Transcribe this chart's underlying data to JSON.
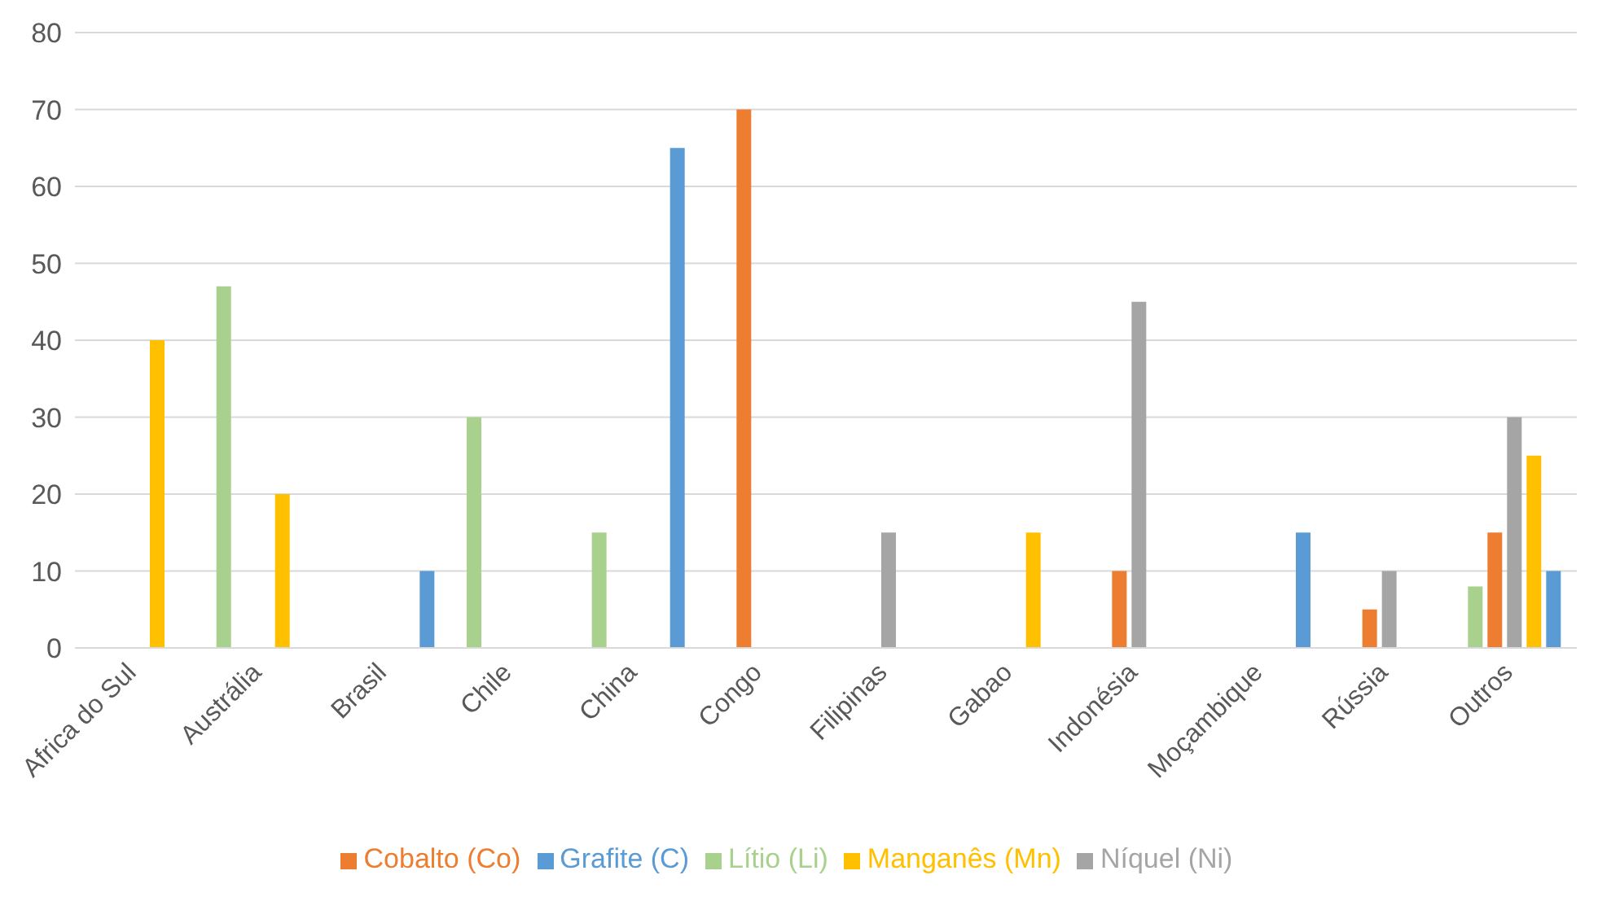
{
  "chart_data": {
    "type": "bar",
    "categories": [
      "Africa do Sul",
      "Austrália",
      "Brasil",
      "Chile",
      "China",
      "Congo",
      "Filipinas",
      "Gabao",
      "Indonésia",
      "Moçambique",
      "Rússia",
      "Outros"
    ],
    "series": [
      {
        "name": "Lítio (Li)",
        "color": "#a9d18e",
        "values": [
          null,
          47,
          null,
          30,
          15,
          null,
          null,
          null,
          null,
          null,
          null,
          8
        ]
      },
      {
        "name": "Cobalto (Co)",
        "color": "#ed7d31",
        "values": [
          null,
          null,
          null,
          null,
          null,
          70,
          null,
          null,
          10,
          null,
          5,
          15
        ]
      },
      {
        "name": "Níquel (Ni)",
        "color": "#a5a5a5",
        "values": [
          null,
          null,
          null,
          null,
          null,
          null,
          15,
          null,
          45,
          null,
          10,
          30
        ]
      },
      {
        "name": "Manganês (Mn)",
        "color": "#ffc000",
        "values": [
          40,
          20,
          null,
          null,
          null,
          null,
          null,
          15,
          null,
          null,
          null,
          25
        ]
      },
      {
        "name": "Grafite (C)",
        "color": "#5b9bd5",
        "values": [
          null,
          null,
          10,
          null,
          65,
          null,
          null,
          null,
          null,
          15,
          null,
          10
        ]
      }
    ],
    "ylim": [
      0,
      80
    ],
    "yticks": [
      0,
      10,
      20,
      30,
      40,
      50,
      60,
      70,
      80
    ],
    "grid": "y",
    "legend": "bottom"
  }
}
